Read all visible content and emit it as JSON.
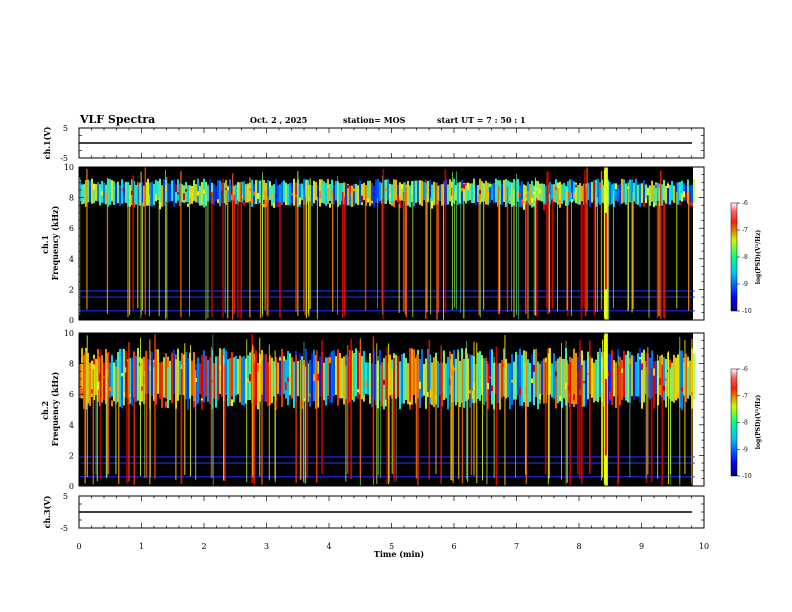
{
  "header": {
    "title": "VLF Spectra",
    "date": "Oct. 2 , 2025",
    "station": "station= MOS",
    "start": "start UT =   7 : 50 : 1"
  },
  "chart_data": [
    {
      "type": "line",
      "ylabel": "ch.1(V)",
      "y_ticks": [
        "5",
        "-5"
      ],
      "ylim": [
        -5,
        5
      ],
      "level": 0,
      "xlim": [
        0,
        10
      ]
    },
    {
      "type": "heatmap",
      "ylabel": "ch.1 Frequency (kHz)",
      "y_ticks": [
        "0",
        "2",
        "4",
        "6",
        "8",
        "10"
      ],
      "ylim": [
        0,
        10
      ],
      "xlim": [
        0,
        10
      ],
      "data_end_min": 9.85,
      "band_khz": [
        7.6,
        9.0
      ],
      "colorbar": {
        "label": "log(PSD)(V²/Hz)",
        "ticks": [
          "-6",
          "-7",
          "-8",
          "-9",
          "-10"
        ],
        "range": [
          -10,
          -6
        ]
      }
    },
    {
      "type": "heatmap",
      "ylabel": "ch.2 Frequency (kHz)",
      "y_ticks": [
        "0",
        "2",
        "4",
        "6",
        "8",
        "10"
      ],
      "ylim": [
        0,
        10
      ],
      "xlim": [
        0,
        10
      ],
      "data_end_min": 9.85,
      "band_khz": [
        5.5,
        8.5
      ],
      "colorbar": {
        "label": "log(PSD)(V²/Hz)",
        "ticks": [
          "-6",
          "-7",
          "-8",
          "-9",
          "-10"
        ],
        "range": [
          -10,
          -6
        ]
      }
    },
    {
      "type": "line",
      "ylabel": "ch.3(V)",
      "y_ticks": [
        "5",
        "-5"
      ],
      "ylim": [
        -5,
        5
      ],
      "level": 0,
      "xlim": [
        0,
        10
      ]
    }
  ],
  "x_axis": {
    "label": "Time (min)",
    "ticks": [
      "0",
      "1",
      "2",
      "3",
      "4",
      "5",
      "6",
      "7",
      "8",
      "9",
      "10"
    ]
  },
  "colors": {
    "background": "#ffffff",
    "axis": "#000000",
    "heatmap_bg": "#000000"
  }
}
